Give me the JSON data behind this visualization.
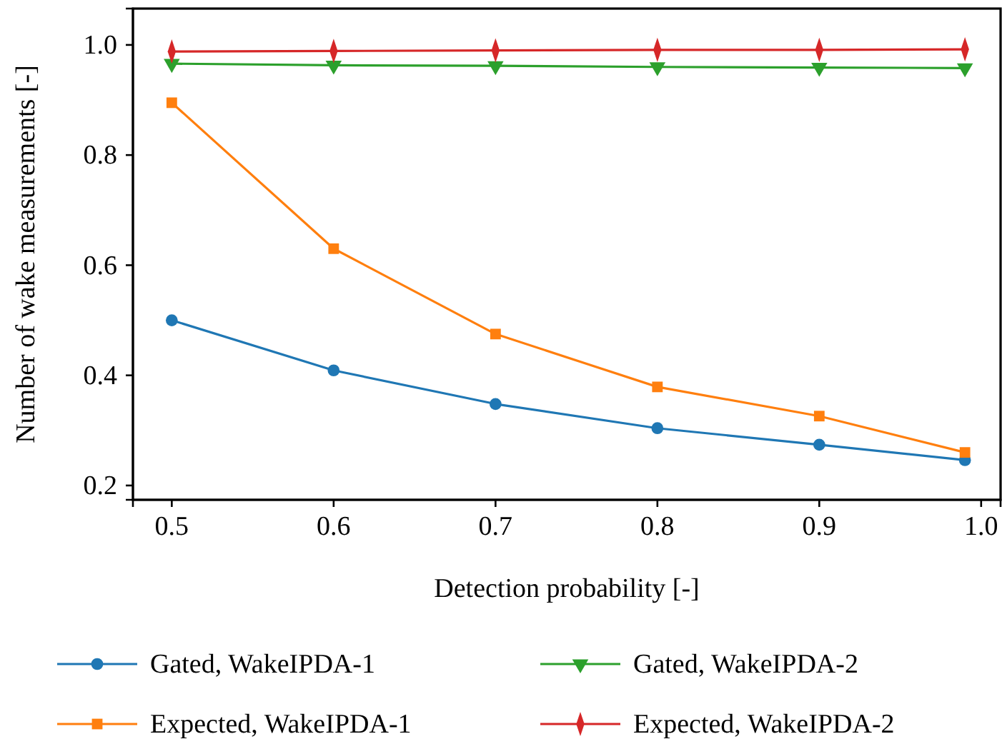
{
  "chart_data": {
    "type": "line",
    "xlabel": "Detection probability [-]",
    "ylabel": "Number of wake measurements [-]",
    "x": [
      0.5,
      0.6,
      0.7,
      0.8,
      0.9,
      0.99
    ],
    "xlim": [
      0.476,
      1.012
    ],
    "xticks": [
      {
        "value": 0.5,
        "label": "0.5"
      },
      {
        "value": 0.6,
        "label": "0.6"
      },
      {
        "value": 0.7,
        "label": "0.7"
      },
      {
        "value": 0.8,
        "label": "0.8"
      },
      {
        "value": 0.9,
        "label": "0.9"
      },
      {
        "value": 1.0,
        "label": "1.0"
      }
    ],
    "ylim": [
      0.174,
      1.066
    ],
    "yticks": [
      {
        "value": 0.2,
        "label": "0.2"
      },
      {
        "value": 0.4,
        "label": "0.4"
      },
      {
        "value": 0.6,
        "label": "0.6"
      },
      {
        "value": 0.8,
        "label": "0.8"
      },
      {
        "value": 1.0,
        "label": "1.0"
      }
    ],
    "grid": false,
    "legend": "bottom",
    "line_style": "solid",
    "series": [
      {
        "name": "Gated, WakeIPDA-1",
        "color": "#1f77b4",
        "marker": "circle",
        "values": [
          0.5,
          0.409,
          0.348,
          0.304,
          0.274,
          0.246
        ]
      },
      {
        "name": "Expected, WakeIPDA-1",
        "color": "#ff7f0e",
        "marker": "square",
        "values": [
          0.895,
          0.63,
          0.475,
          0.379,
          0.326,
          0.26
        ]
      },
      {
        "name": "Gated, WakeIPDA-2",
        "color": "#2ca02c",
        "marker": "triangle",
        "values": [
          0.966,
          0.963,
          0.962,
          0.96,
          0.959,
          0.958
        ]
      },
      {
        "name": "Expected, WakeIPDA-2",
        "color": "#d62728",
        "marker": "diamond",
        "values": [
          0.988,
          0.989,
          0.99,
          0.991,
          0.991,
          0.992
        ]
      }
    ]
  }
}
